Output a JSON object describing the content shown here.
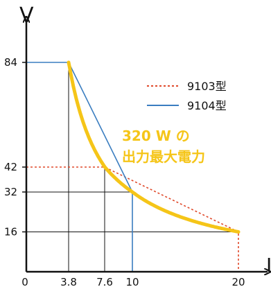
{
  "chart_data": {
    "type": "line",
    "ylabel": "V",
    "xlabel": "I",
    "x_ticks": [
      "0",
      "3.8",
      "7.6",
      "10",
      "20"
    ],
    "y_ticks": [
      "84",
      "42",
      "32",
      "16"
    ],
    "xlim": [
      0,
      20
    ],
    "ylim": [
      0,
      84
    ],
    "series": [
      {
        "name": "9103型",
        "color": "#e0492a",
        "style": "dotted",
        "points": [
          [
            0,
            42
          ],
          [
            7.6,
            42
          ],
          [
            20,
            16
          ],
          [
            20,
            0
          ]
        ]
      },
      {
        "name": "9104型",
        "color": "#3a7dc0",
        "style": "solid",
        "points": [
          [
            0,
            84
          ],
          [
            3.8,
            84
          ],
          [
            10,
            32
          ],
          [
            10,
            0
          ]
        ]
      }
    ],
    "power_curve": {
      "watts": 320,
      "x_range": [
        3.8,
        20
      ],
      "color": "#f5c518"
    },
    "annotation": {
      "line1": "320 W の",
      "line2": "出力最大電力",
      "color": "#f5c518"
    },
    "legend_position": "top-right"
  }
}
